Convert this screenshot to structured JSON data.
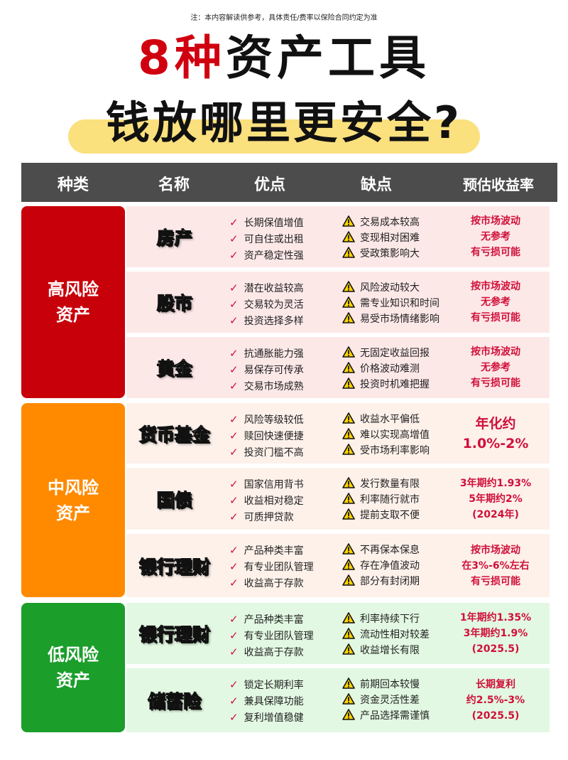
{
  "note": "注：本内容解读供参考，具体责任/费率以保险合同约定为准",
  "title": {
    "highlight": "8种",
    "rest": "资产工具",
    "line2": "钱放哪里更安全?"
  },
  "header": [
    "种类",
    "名称",
    "优点",
    "缺点",
    "预估收益率"
  ],
  "colors": {
    "high": "#c8000a",
    "medium": "#ff8a00",
    "low": "#1b9e2a",
    "high_row": "#fde8e8",
    "medium_row": "#fdf1ea",
    "low_row": "#e2f8e2",
    "accent": "#d0103a",
    "header_bg": "#4c4c4c",
    "highlight": "#fbe07e"
  },
  "groups": [
    {
      "label": "高风险\n资产",
      "level": "high",
      "rows": [
        {
          "name": "房产",
          "pros": [
            "长期保值增值",
            "可自住或出租",
            "资产稳定性强"
          ],
          "cons": [
            "交易成本较高",
            "变现相对困难",
            "受政策影响大"
          ],
          "rate": [
            "按市场波动",
            "无参考",
            "有亏损可能"
          ]
        },
        {
          "name": "股市",
          "pros": [
            "潜在收益较高",
            "交易较为灵活",
            "投资选择多样"
          ],
          "cons": [
            "风险波动较大",
            "需专业知识和时间",
            "易受市场情绪影响"
          ],
          "rate": [
            "按市场波动",
            "无参考",
            "有亏损可能"
          ]
        },
        {
          "name": "黄金",
          "pros": [
            "抗通胀能力强",
            "易保存可传承",
            "交易市场成熟"
          ],
          "cons": [
            "无固定收益回报",
            "价格波动难测",
            "投资时机难把握"
          ],
          "rate": [
            "按市场波动",
            "无参考",
            "有亏损可能"
          ]
        }
      ]
    },
    {
      "label": "中风险\n资产",
      "level": "medium",
      "rows": [
        {
          "name": "货币基金",
          "pros": [
            "风险等级较低",
            "赎回快速便捷",
            "投资门槛不高"
          ],
          "cons": [
            "收益水平偏低",
            "难以实现高增值",
            "受市场利率影响"
          ],
          "rate": [
            "年化约",
            "1.0%-2%"
          ],
          "big": true
        },
        {
          "name": "国债",
          "pros": [
            "国家信用背书",
            "收益相对稳定",
            "可质押贷款"
          ],
          "cons": [
            "发行数量有限",
            "利率随行就市",
            "提前支取不便"
          ],
          "rate": [
            "3年期约1.93%",
            "5年期约2%",
            "(2024年)"
          ]
        },
        {
          "name": "银行理财",
          "pros": [
            "产品种类丰富",
            "有专业团队管理",
            "收益高于存款"
          ],
          "cons": [
            "不再保本保息",
            "存在净值波动",
            "部分有封闭期"
          ],
          "rate": [
            "按市场波动",
            "在3%-6%左右",
            "有亏损可能"
          ]
        }
      ]
    },
    {
      "label": "低风险\n资产",
      "level": "low",
      "rows": [
        {
          "name": "银行理财",
          "pros": [
            "产品种类丰富",
            "有专业团队管理",
            "收益高于存款"
          ],
          "cons": [
            "利率持续下行",
            "流动性相对较差",
            "收益增长有限"
          ],
          "rate": [
            "1年期约1.35%",
            "3年期约1.9%",
            "(2025.5)"
          ]
        },
        {
          "name": "储蓄险",
          "pros": [
            "锁定长期利率",
            "兼具保障功能",
            "复利增值稳健"
          ],
          "cons": [
            "前期回本较慢",
            "资金灵活性差",
            "产品选择需谨慎"
          ],
          "rate": [
            "长期复利",
            "约2.5%-3%",
            "(2025.5)"
          ]
        }
      ]
    }
  ]
}
